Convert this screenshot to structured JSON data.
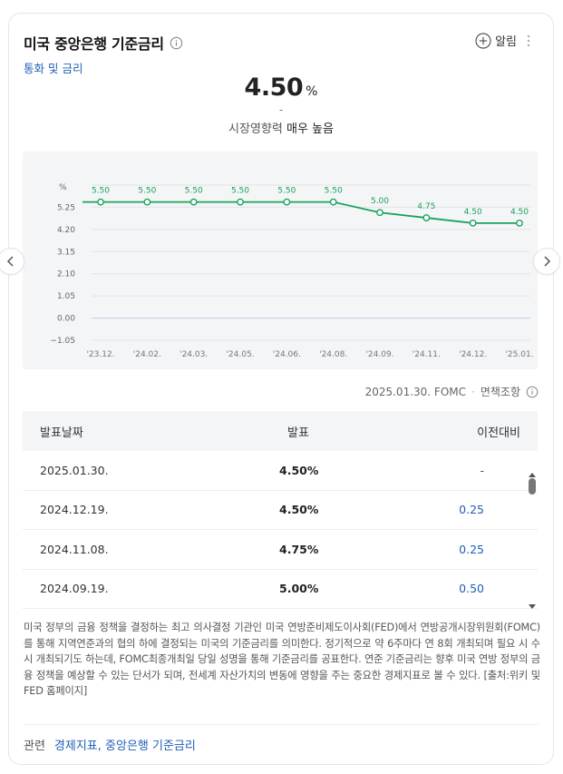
{
  "header": {
    "title": "미국 중앙은행 기준금리",
    "subtitle": "통화 및 금리",
    "alarm_label": "알림"
  },
  "current": {
    "value": "4.50",
    "unit": "%",
    "change": "-",
    "impact_label": "시장영향력",
    "impact_value": "매우 높음"
  },
  "chart_data": {
    "type": "line",
    "unit_label": "%",
    "categories": [
      "'23.12.",
      "'24.02.",
      "'24.03.",
      "'24.05.",
      "'24.06.",
      "'24.08.",
      "'24.09.",
      "'24.11.",
      "'24.12.",
      "'25.01."
    ],
    "series": [
      {
        "values": [
          5.5,
          5.5,
          5.5,
          5.5,
          5.5,
          5.5,
          5.0,
          4.75,
          4.5,
          4.5
        ],
        "data_labels": [
          "5.50",
          "5.50",
          "5.50",
          "5.50",
          "5.50",
          "5.50",
          "5.00",
          "4.75",
          "4.50",
          "4.50"
        ]
      }
    ],
    "y_ticks": [
      5.25,
      4.2,
      3.15,
      2.1,
      1.05,
      0.0,
      -1.05
    ],
    "y_tick_labels": [
      "5.25",
      "4.20",
      "3.15",
      "2.10",
      "1.05",
      "0.00",
      "−1.05"
    ],
    "ylim": [
      -1.05,
      6.3
    ],
    "grid": true,
    "line_color": "#1aa35a",
    "zero_line_color": "#c5d3ea"
  },
  "source": {
    "text": "2025.01.30. FOMC",
    "separator": "·",
    "disclaimer": "면책조항"
  },
  "table": {
    "headers": [
      "발표날짜",
      "발표",
      "이전대비"
    ],
    "rows": [
      {
        "date": "2025.01.30.",
        "value": "4.50%",
        "diff": "-"
      },
      {
        "date": "2024.12.19.",
        "value": "4.50%",
        "diff": "0.25"
      },
      {
        "date": "2024.11.08.",
        "value": "4.75%",
        "diff": "0.25"
      },
      {
        "date": "2024.09.19.",
        "value": "5.00%",
        "diff": "0.50"
      }
    ]
  },
  "description": "미국 정부의 금융 정책을 결정하는 최고 의사결정 기관인 미국 연방준비제도이사회(FED)에서 연방공개시장위원회(FOMC)를 통해 지역연준과의 협의 하에 결정되는 미국의 기준금리를 의미한다. 정기적으로 약 6주마다 연 8회 개최되며 필요 시 수시 개최되기도 하는데, FOMC최종개최일 당일 성명을 통해 기준금리를 공표한다. 연준 기준금리는 향후 미국 연방 정부의 금융 정책을 예상할 수 있는 단서가 되며, 전세계 자산가치의 변동에 영향을 주는 중요한 경제지표로 볼 수 있다. [출처:위키 및 FED 홈페이지]",
  "related": {
    "label": "관련",
    "links": [
      "경제지표",
      "중앙은행 기준금리"
    ],
    "link_separator": ", "
  },
  "icons": {
    "info": "info-circle-icon",
    "alarm": "plus-circle-icon",
    "more": "vertical-dots-icon",
    "prev": "chevron-left-icon",
    "next": "chevron-right-icon"
  }
}
